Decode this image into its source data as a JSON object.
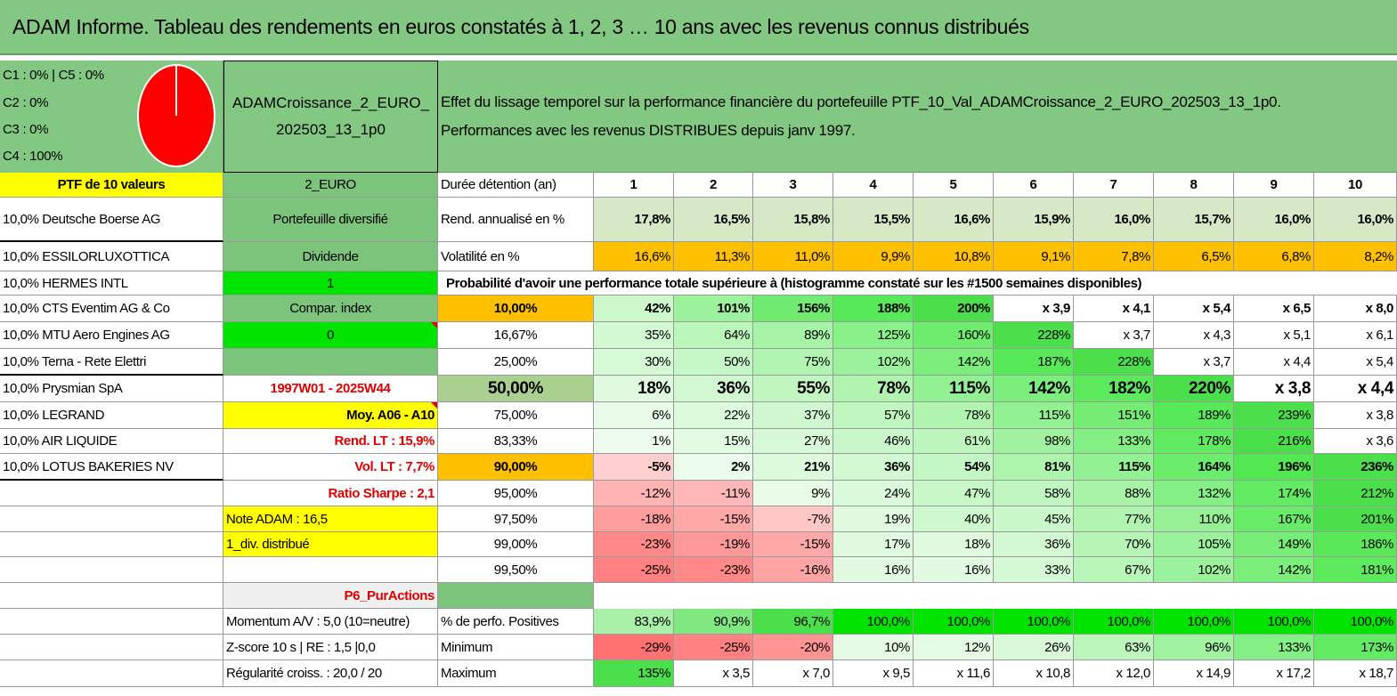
{
  "title": "ADAM Informe. Tableau des rendements en euros constatés à 1, 2, 3 … 10 ans avec les revenus connus distribués",
  "legend": {
    "lines": [
      "C1 : 0% | C5 : 0%",
      "C2 : 0%",
      "C3 : 0%",
      "C4 : 100%"
    ],
    "pie_color": "#ff0000"
  },
  "portfolio_name": [
    "ADAMCroissance_2_EURO_",
    "202503_13_1p0"
  ],
  "description": [
    "Effet du lissage temporel sur la performance financière du portefeuille PTF_10_Val_ADAMCroissance_2_EURO_202503_13_1p0.",
    "Performances avec les revenus DISTRIBUES depuis janv 1997."
  ],
  "ptf_label": "PTF de 10 valeurs",
  "holdings": [
    "10,0% Deutsche Boerse AG",
    "10,0% ESSILORLUXOTTICA",
    "10,0% HERMES INTL",
    "10,0% CTS Eventim AG & Co",
    "10,0% MTU Aero Engines AG",
    "10,0% Terna - Rete Elettri",
    "10,0% Prysmian SpA",
    "10,0% LEGRAND",
    "10,0% AIR LIQUIDE",
    "10,0% LOTUS BAKERIES NV"
  ],
  "info_column": [
    "2_EURO",
    "Portefeuille diversifié",
    "Dividende",
    "1",
    "Compar. index",
    "0",
    "",
    "1997W01 - 2025W44",
    "Moy. A06 - A10",
    "Rend. LT : 15,9%",
    "Vol. LT : 7,7%",
    "Ratio Sharpe : 2,1",
    "Note ADAM : 16,5",
    "1_div. distribué",
    "",
    "P6_PurActions",
    "Momentum A/V : 5,0 (10=neutre)",
    "Z-score 10 s | RE : 1,5 |0,0",
    "Régularité croiss. : 20,0 / 20"
  ],
  "table": {
    "header_label": "Durée détention (an)",
    "years": [
      "1",
      "2",
      "3",
      "4",
      "5",
      "6",
      "7",
      "8",
      "9",
      "10"
    ],
    "rend_label": "Rend. annualisé en %",
    "rend": [
      "17,8%",
      "16,5%",
      "15,8%",
      "15,5%",
      "16,6%",
      "15,9%",
      "16,0%",
      "15,7%",
      "16,0%",
      "16,0%"
    ],
    "vol_label": "Volatilité en %",
    "vol": [
      "16,6%",
      "11,3%",
      "11,0%",
      "9,9%",
      "10,8%",
      "9,1%",
      "7,8%",
      "6,5%",
      "6,8%",
      "8,2%"
    ],
    "prob_header": "Probabilité d'avoir une performance totale supérieure à (histogramme constaté sur les #1500 semaines disponibles)",
    "prob_rows": [
      {
        "label": "10,00%",
        "values": [
          "42%",
          "101%",
          "156%",
          "188%",
          "200%",
          "x 3,9",
          "x 4,1",
          "x 5,4",
          "x 6,5",
          "x 8,0"
        ]
      },
      {
        "label": "16,67%",
        "values": [
          "35%",
          "64%",
          "89%",
          "125%",
          "160%",
          "228%",
          "x 3,7",
          "x 4,3",
          "x 5,1",
          "x 6,1"
        ]
      },
      {
        "label": "25,00%",
        "values": [
          "30%",
          "50%",
          "75%",
          "102%",
          "142%",
          "187%",
          "228%",
          "x 3,7",
          "x 4,4",
          "x 5,4"
        ]
      },
      {
        "label": "50,00%",
        "values": [
          "18%",
          "36%",
          "55%",
          "78%",
          "115%",
          "142%",
          "182%",
          "220%",
          "x 3,8",
          "x 4,4"
        ]
      },
      {
        "label": "75,00%",
        "values": [
          "6%",
          "22%",
          "37%",
          "57%",
          "78%",
          "115%",
          "151%",
          "189%",
          "239%",
          "x 3,8"
        ]
      },
      {
        "label": "83,33%",
        "values": [
          "1%",
          "15%",
          "27%",
          "46%",
          "61%",
          "98%",
          "133%",
          "178%",
          "216%",
          "x 3,6"
        ]
      },
      {
        "label": "90,00%",
        "values": [
          "-5%",
          "2%",
          "21%",
          "36%",
          "54%",
          "81%",
          "115%",
          "164%",
          "196%",
          "236%"
        ]
      },
      {
        "label": "95,00%",
        "values": [
          "-12%",
          "-11%",
          "9%",
          "24%",
          "47%",
          "58%",
          "88%",
          "132%",
          "174%",
          "212%"
        ]
      },
      {
        "label": "97,50%",
        "values": [
          "-18%",
          "-15%",
          "-7%",
          "19%",
          "40%",
          "45%",
          "77%",
          "110%",
          "167%",
          "201%"
        ]
      },
      {
        "label": "99,00%",
        "values": [
          "-23%",
          "-19%",
          "-15%",
          "17%",
          "18%",
          "36%",
          "70%",
          "105%",
          "149%",
          "186%"
        ]
      },
      {
        "label": "99,50%",
        "values": [
          "-25%",
          "-23%",
          "-16%",
          "16%",
          "16%",
          "33%",
          "67%",
          "102%",
          "142%",
          "181%"
        ]
      }
    ],
    "pos_label": "% de perfo. Positives",
    "pos": [
      "83,9%",
      "90,9%",
      "96,7%",
      "100,0%",
      "100,0%",
      "100,0%",
      "100,0%",
      "100,0%",
      "100,0%",
      "100,0%"
    ],
    "min_label": "Minimum",
    "min": [
      "-29%",
      "-25%",
      "-20%",
      "10%",
      "12%",
      "26%",
      "63%",
      "96%",
      "133%",
      "173%"
    ],
    "max_label": "Maximum",
    "max": [
      "135%",
      "x 3,5",
      "x 7,0",
      "x 9,5",
      "x 11,6",
      "x 10,8",
      "x 12,0",
      "x 14,9",
      "x 17,2",
      "x 18,7"
    ]
  },
  "colors": {
    "title_green": "#82c882",
    "yellow": "#ffff00",
    "orange": "#ffc000",
    "bright_green": "#00e400",
    "dark_green": "#7cc47c",
    "red_text": "#e00000"
  }
}
